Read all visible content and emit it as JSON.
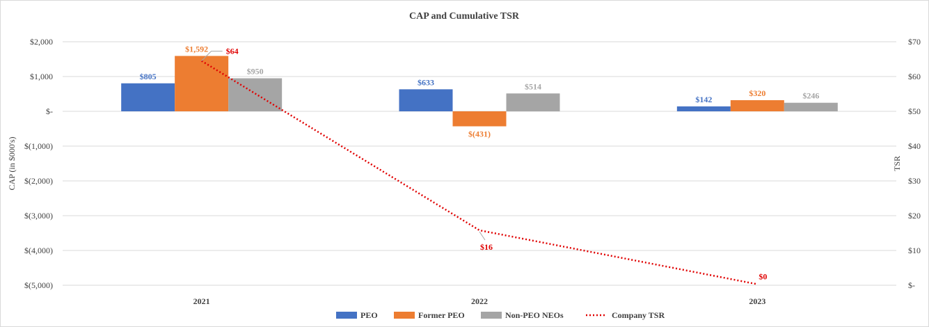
{
  "chart_data": {
    "type": "bar",
    "title": "CAP and Cumulative TSR",
    "categories": [
      "2021",
      "2022",
      "2023"
    ],
    "ylabel": "CAP (in $000's)",
    "y2label": "TSR",
    "ylim": [
      -5000,
      2000
    ],
    "y2lim": [
      0,
      70
    ],
    "y_ticks": [
      {
        "value": 2000,
        "label": "$2,000"
      },
      {
        "value": 1000,
        "label": "$1,000"
      },
      {
        "value": 0,
        "label": "$-"
      },
      {
        "value": -1000,
        "label": "$(1,000)"
      },
      {
        "value": -2000,
        "label": "$(2,000)"
      },
      {
        "value": -3000,
        "label": "$(3,000)"
      },
      {
        "value": -4000,
        "label": "$(4,000)"
      },
      {
        "value": -5000,
        "label": "$(5,000)"
      }
    ],
    "y2_ticks": [
      {
        "value": 70,
        "label": "$70"
      },
      {
        "value": 60,
        "label": "$60"
      },
      {
        "value": 50,
        "label": "$50"
      },
      {
        "value": 40,
        "label": "$40"
      },
      {
        "value": 30,
        "label": "$30"
      },
      {
        "value": 20,
        "label": "$20"
      },
      {
        "value": 10,
        "label": "$10"
      },
      {
        "value": 0,
        "label": "$-"
      }
    ],
    "series": [
      {
        "name": "PEO",
        "color": "#4472c4",
        "values": [
          805,
          633,
          142
        ],
        "labels": [
          "$805",
          "$633",
          "$142"
        ]
      },
      {
        "name": "Former PEO",
        "color": "#ed7d31",
        "values": [
          1592,
          -431,
          320
        ],
        "labels": [
          "$1,592",
          "$(431)",
          "$320"
        ]
      },
      {
        "name": "Non-PEO NEOs",
        "color": "#a5a5a5",
        "values": [
          950,
          514,
          246
        ],
        "labels": [
          "$950",
          "$514",
          "$246"
        ]
      }
    ],
    "line_series": {
      "name": "Company TSR",
      "color": "#e00000",
      "axis": "secondary",
      "style": "dotted",
      "values": [
        64.5,
        15.8,
        0.3
      ],
      "labels": [
        "$64",
        "$16",
        "$0"
      ]
    },
    "legend": "bottom"
  }
}
